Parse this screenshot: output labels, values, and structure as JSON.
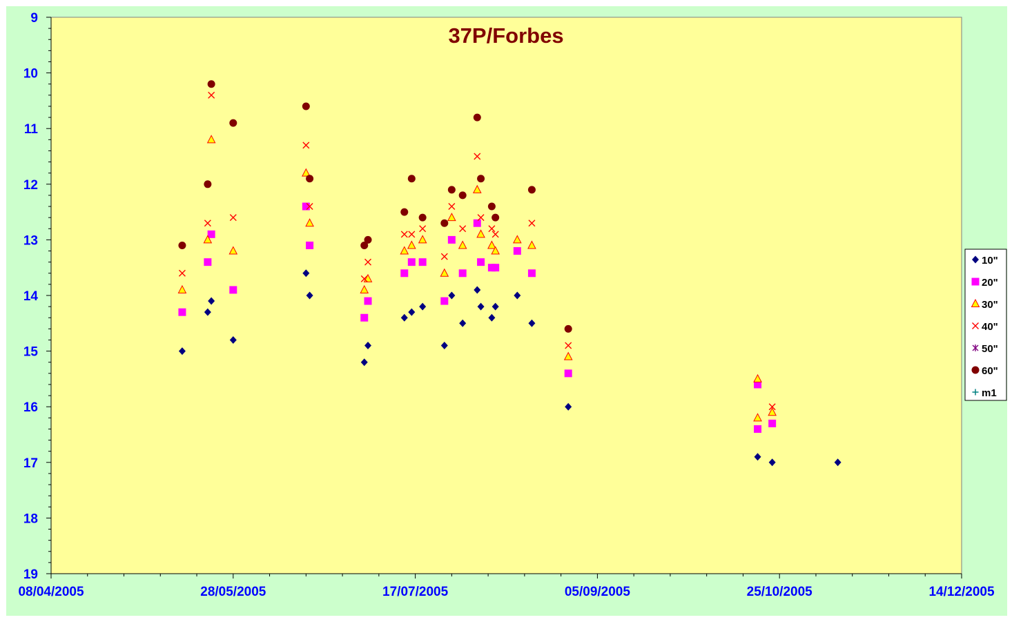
{
  "chart_data": {
    "type": "scatter",
    "title": "37P/Forbes",
    "xlabel": "",
    "ylabel": "",
    "x_axis": {
      "type": "date",
      "min": "2005-04-08",
      "max": "2005-12-14",
      "tick_labels": [
        "08/04/2005",
        "28/05/2005",
        "17/07/2005",
        "05/09/2005",
        "25/10/2005",
        "14/12/2005"
      ]
    },
    "y_axis": {
      "min": 9,
      "max": 19,
      "reversed": true,
      "tick_labels": [
        "9",
        "10",
        "11",
        "12",
        "13",
        "14",
        "15",
        "16",
        "17",
        "18",
        "19"
      ]
    },
    "grid": false,
    "legend_position": "right",
    "plot_background": "#ffff99",
    "chart_background": "#ccffcc",
    "series": [
      {
        "name": "10\"",
        "marker": "diamond",
        "color": "#000080",
        "points": [
          [
            "2005-05-14",
            15.0
          ],
          [
            "2005-05-21",
            14.3
          ],
          [
            "2005-05-22",
            14.1
          ],
          [
            "2005-05-28",
            14.8
          ],
          [
            "2005-06-17",
            13.6
          ],
          [
            "2005-06-18",
            14.0
          ],
          [
            "2005-07-03",
            15.2
          ],
          [
            "2005-07-04",
            14.9
          ],
          [
            "2005-07-14",
            14.4
          ],
          [
            "2005-07-16",
            14.3
          ],
          [
            "2005-07-19",
            14.2
          ],
          [
            "2005-07-25",
            14.9
          ],
          [
            "2005-07-27",
            14.0
          ],
          [
            "2005-07-30",
            14.5
          ],
          [
            "2005-08-03",
            13.9
          ],
          [
            "2005-08-04",
            14.2
          ],
          [
            "2005-08-07",
            14.4
          ],
          [
            "2005-08-08",
            14.2
          ],
          [
            "2005-08-14",
            14.0
          ],
          [
            "2005-08-18",
            14.5
          ],
          [
            "2005-08-28",
            16.0
          ],
          [
            "2005-10-19",
            16.9
          ],
          [
            "2005-10-23",
            17.0
          ],
          [
            "2005-11-10",
            17.0
          ]
        ]
      },
      {
        "name": "20\"",
        "marker": "square",
        "color": "#ff00ff",
        "points": [
          [
            "2005-05-14",
            14.3
          ],
          [
            "2005-05-21",
            13.4
          ],
          [
            "2005-05-22",
            12.9
          ],
          [
            "2005-05-28",
            13.9
          ],
          [
            "2005-06-17",
            12.4
          ],
          [
            "2005-06-18",
            13.1
          ],
          [
            "2005-07-03",
            14.4
          ],
          [
            "2005-07-04",
            14.1
          ],
          [
            "2005-07-14",
            13.6
          ],
          [
            "2005-07-16",
            13.4
          ],
          [
            "2005-07-19",
            13.4
          ],
          [
            "2005-07-25",
            14.1
          ],
          [
            "2005-07-27",
            13.0
          ],
          [
            "2005-07-30",
            13.6
          ],
          [
            "2005-08-03",
            12.7
          ],
          [
            "2005-08-04",
            13.4
          ],
          [
            "2005-08-07",
            13.5
          ],
          [
            "2005-08-08",
            13.5
          ],
          [
            "2005-08-14",
            13.2
          ],
          [
            "2005-08-18",
            13.6
          ],
          [
            "2005-08-28",
            15.4
          ],
          [
            "2005-10-19",
            15.6
          ],
          [
            "2005-10-19",
            16.4
          ],
          [
            "2005-10-23",
            16.3
          ]
        ]
      },
      {
        "name": "30\"",
        "marker": "triangle",
        "color": "#ffff00",
        "stroke": "#ff0000",
        "points": [
          [
            "2005-05-14",
            13.9
          ],
          [
            "2005-05-21",
            13.0
          ],
          [
            "2005-05-22",
            11.2
          ],
          [
            "2005-05-28",
            13.2
          ],
          [
            "2005-06-17",
            11.8
          ],
          [
            "2005-06-18",
            12.7
          ],
          [
            "2005-07-03",
            13.9
          ],
          [
            "2005-07-04",
            13.7
          ],
          [
            "2005-07-14",
            13.2
          ],
          [
            "2005-07-16",
            13.1
          ],
          [
            "2005-07-19",
            13.0
          ],
          [
            "2005-07-25",
            13.6
          ],
          [
            "2005-07-27",
            12.6
          ],
          [
            "2005-07-30",
            13.1
          ],
          [
            "2005-08-03",
            12.1
          ],
          [
            "2005-08-04",
            12.9
          ],
          [
            "2005-08-07",
            13.1
          ],
          [
            "2005-08-08",
            13.2
          ],
          [
            "2005-08-14",
            13.0
          ],
          [
            "2005-08-18",
            13.1
          ],
          [
            "2005-08-28",
            15.1
          ],
          [
            "2005-10-19",
            15.5
          ],
          [
            "2005-10-19",
            16.2
          ],
          [
            "2005-10-23",
            16.1
          ]
        ]
      },
      {
        "name": "40\"",
        "marker": "x",
        "color": "#ff0000",
        "points": [
          [
            "2005-05-14",
            13.6
          ],
          [
            "2005-05-21",
            12.7
          ],
          [
            "2005-05-22",
            10.4
          ],
          [
            "2005-05-28",
            12.6
          ],
          [
            "2005-06-17",
            11.3
          ],
          [
            "2005-06-18",
            12.4
          ],
          [
            "2005-07-03",
            13.7
          ],
          [
            "2005-07-04",
            13.4
          ],
          [
            "2005-07-14",
            12.9
          ],
          [
            "2005-07-16",
            12.9
          ],
          [
            "2005-07-19",
            12.8
          ],
          [
            "2005-07-25",
            13.3
          ],
          [
            "2005-07-27",
            12.4
          ],
          [
            "2005-07-30",
            12.8
          ],
          [
            "2005-08-03",
            11.5
          ],
          [
            "2005-08-04",
            12.6
          ],
          [
            "2005-08-07",
            12.8
          ],
          [
            "2005-08-08",
            12.9
          ],
          [
            "2005-08-18",
            12.7
          ],
          [
            "2005-08-28",
            14.9
          ],
          [
            "2005-10-23",
            16.0
          ]
        ]
      },
      {
        "name": "50\"",
        "marker": "star",
        "color": "#800080",
        "points": []
      },
      {
        "name": "60\"",
        "marker": "circle",
        "color": "#800000",
        "points": [
          [
            "2005-05-14",
            13.1
          ],
          [
            "2005-05-21",
            12.0
          ],
          [
            "2005-05-22",
            10.2
          ],
          [
            "2005-05-28",
            10.9
          ],
          [
            "2005-06-17",
            10.6
          ],
          [
            "2005-06-18",
            11.9
          ],
          [
            "2005-07-03",
            13.1
          ],
          [
            "2005-07-04",
            13.0
          ],
          [
            "2005-07-14",
            12.5
          ],
          [
            "2005-07-16",
            11.9
          ],
          [
            "2005-07-19",
            12.6
          ],
          [
            "2005-07-25",
            12.7
          ],
          [
            "2005-07-27",
            12.1
          ],
          [
            "2005-07-30",
            12.2
          ],
          [
            "2005-08-03",
            10.8
          ],
          [
            "2005-08-04",
            11.9
          ],
          [
            "2005-08-07",
            12.4
          ],
          [
            "2005-08-08",
            12.6
          ],
          [
            "2005-08-18",
            12.1
          ],
          [
            "2005-08-28",
            14.6
          ]
        ]
      },
      {
        "name": "m1",
        "marker": "plus",
        "color": "#008080",
        "points": []
      }
    ]
  }
}
